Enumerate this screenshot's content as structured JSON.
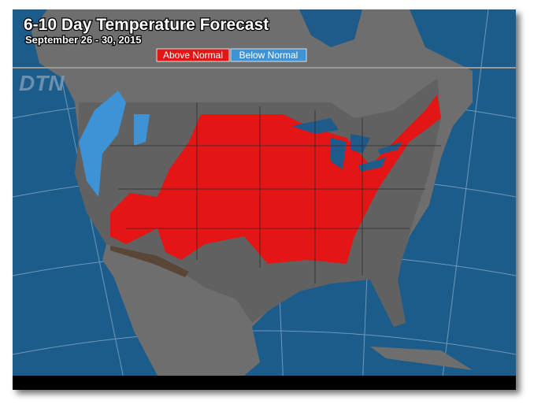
{
  "header": {
    "title": "6-10 Day Temperature Forecast",
    "subtitle": "September 26 - 30, 2015"
  },
  "legend": [
    {
      "label": "Above Normal",
      "color": "#e31515"
    },
    {
      "label": "Below Normal",
      "color": "#3d93d6"
    }
  ],
  "watermark": "DTN"
}
